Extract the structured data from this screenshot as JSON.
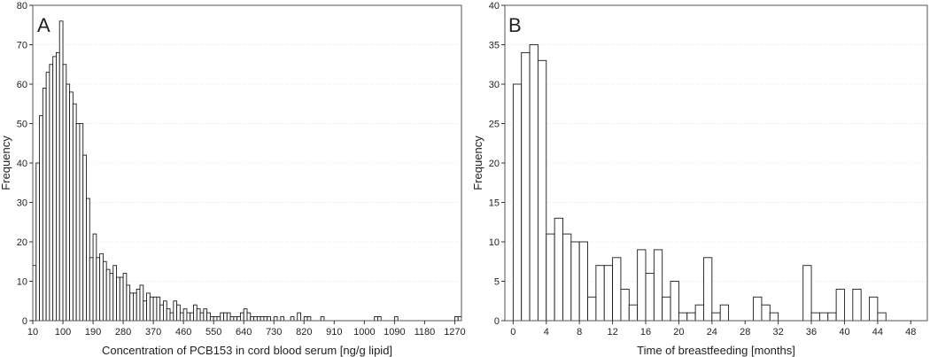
{
  "chart_data": [
    {
      "type": "bar",
      "panel_label": "A",
      "title": "",
      "xlabel": "Concentration of PCB153 in cord blood serum [ng/g lipid]",
      "ylabel": "Frequency",
      "xlim": [
        10,
        1290
      ],
      "ylim": [
        0,
        80
      ],
      "bin_width": 10,
      "xticks": [
        10,
        100,
        190,
        280,
        370,
        460,
        550,
        640,
        730,
        820,
        910,
        1000,
        1090,
        1180,
        1270
      ],
      "xtick_labels": [
        "10",
        "100",
        "190",
        "280",
        "370",
        "460",
        "550",
        "640",
        "730",
        "820",
        "910",
        "1000",
        "1090",
        "1180",
        "1270"
      ],
      "yticks": [
        0,
        10,
        20,
        30,
        40,
        50,
        60,
        70,
        80
      ],
      "ytick_labels": [
        "0",
        "10",
        "20",
        "30",
        "40",
        "50",
        "60",
        "70",
        "80"
      ],
      "grid": true,
      "bins": [
        {
          "x": 10,
          "y": 14
        },
        {
          "x": 20,
          "y": 40
        },
        {
          "x": 30,
          "y": 52
        },
        {
          "x": 40,
          "y": 59
        },
        {
          "x": 50,
          "y": 63
        },
        {
          "x": 60,
          "y": 65
        },
        {
          "x": 70,
          "y": 67
        },
        {
          "x": 80,
          "y": 68
        },
        {
          "x": 90,
          "y": 76
        },
        {
          "x": 100,
          "y": 65
        },
        {
          "x": 110,
          "y": 60
        },
        {
          "x": 120,
          "y": 58
        },
        {
          "x": 130,
          "y": 55
        },
        {
          "x": 140,
          "y": 50
        },
        {
          "x": 150,
          "y": 50
        },
        {
          "x": 160,
          "y": 42
        },
        {
          "x": 170,
          "y": 31
        },
        {
          "x": 180,
          "y": 16
        },
        {
          "x": 190,
          "y": 22
        },
        {
          "x": 200,
          "y": 16
        },
        {
          "x": 210,
          "y": 17
        },
        {
          "x": 220,
          "y": 15
        },
        {
          "x": 230,
          "y": 13
        },
        {
          "x": 240,
          "y": 12
        },
        {
          "x": 250,
          "y": 14
        },
        {
          "x": 260,
          "y": 11
        },
        {
          "x": 270,
          "y": 11
        },
        {
          "x": 280,
          "y": 12
        },
        {
          "x": 290,
          "y": 9
        },
        {
          "x": 300,
          "y": 7
        },
        {
          "x": 310,
          "y": 7
        },
        {
          "x": 320,
          "y": 8
        },
        {
          "x": 330,
          "y": 9
        },
        {
          "x": 340,
          "y": 5
        },
        {
          "x": 350,
          "y": 7
        },
        {
          "x": 360,
          "y": 6
        },
        {
          "x": 370,
          "y": 6
        },
        {
          "x": 380,
          "y": 6
        },
        {
          "x": 390,
          "y": 4
        },
        {
          "x": 400,
          "y": 5
        },
        {
          "x": 410,
          "y": 3
        },
        {
          "x": 420,
          "y": 2
        },
        {
          "x": 430,
          "y": 5
        },
        {
          "x": 440,
          "y": 4
        },
        {
          "x": 450,
          "y": 2
        },
        {
          "x": 460,
          "y": 3
        },
        {
          "x": 470,
          "y": 2
        },
        {
          "x": 480,
          "y": 2
        },
        {
          "x": 490,
          "y": 4
        },
        {
          "x": 500,
          "y": 3
        },
        {
          "x": 510,
          "y": 2
        },
        {
          "x": 520,
          "y": 3
        },
        {
          "x": 530,
          "y": 2
        },
        {
          "x": 540,
          "y": 1
        },
        {
          "x": 550,
          "y": 1
        },
        {
          "x": 560,
          "y": 1
        },
        {
          "x": 570,
          "y": 2
        },
        {
          "x": 580,
          "y": 2
        },
        {
          "x": 590,
          "y": 2
        },
        {
          "x": 600,
          "y": 1
        },
        {
          "x": 610,
          "y": 1
        },
        {
          "x": 620,
          "y": 1
        },
        {
          "x": 630,
          "y": 2
        },
        {
          "x": 640,
          "y": 3
        },
        {
          "x": 650,
          "y": 2
        },
        {
          "x": 660,
          "y": 1
        },
        {
          "x": 670,
          "y": 1
        },
        {
          "x": 680,
          "y": 1
        },
        {
          "x": 690,
          "y": 1
        },
        {
          "x": 700,
          "y": 1
        },
        {
          "x": 710,
          "y": 1
        },
        {
          "x": 730,
          "y": 1
        },
        {
          "x": 750,
          "y": 1
        },
        {
          "x": 780,
          "y": 1
        },
        {
          "x": 800,
          "y": 2
        },
        {
          "x": 820,
          "y": 1
        },
        {
          "x": 830,
          "y": 1
        },
        {
          "x": 870,
          "y": 1
        },
        {
          "x": 1030,
          "y": 1
        },
        {
          "x": 1040,
          "y": 1
        },
        {
          "x": 1090,
          "y": 1
        },
        {
          "x": 1270,
          "y": 1
        },
        {
          "x": 1280,
          "y": 1
        }
      ]
    },
    {
      "type": "bar",
      "panel_label": "B",
      "title": "",
      "xlabel": "Time of breastfeeding [months]",
      "ylabel": "Frequency",
      "xlim": [
        -1,
        50
      ],
      "ylim": [
        0,
        40
      ],
      "bin_width": 1,
      "xticks": [
        0,
        4,
        8,
        12,
        16,
        20,
        24,
        28,
        32,
        36,
        40,
        44,
        48
      ],
      "xtick_labels": [
        "0",
        "4",
        "8",
        "12",
        "16",
        "20",
        "24",
        "28",
        "32",
        "36",
        "40",
        "44",
        "48"
      ],
      "yticks": [
        0,
        5,
        10,
        15,
        20,
        25,
        30,
        35,
        40
      ],
      "ytick_labels": [
        "0",
        "5",
        "10",
        "15",
        "20",
        "25",
        "30",
        "35",
        "40"
      ],
      "grid": true,
      "bins": [
        {
          "x": 0,
          "y": 30
        },
        {
          "x": 1,
          "y": 34
        },
        {
          "x": 2,
          "y": 35
        },
        {
          "x": 3,
          "y": 33
        },
        {
          "x": 4,
          "y": 11
        },
        {
          "x": 5,
          "y": 13
        },
        {
          "x": 6,
          "y": 11
        },
        {
          "x": 7,
          "y": 10
        },
        {
          "x": 8,
          "y": 10
        },
        {
          "x": 9,
          "y": 3
        },
        {
          "x": 10,
          "y": 7
        },
        {
          "x": 11,
          "y": 7
        },
        {
          "x": 12,
          "y": 8
        },
        {
          "x": 13,
          "y": 4
        },
        {
          "x": 14,
          "y": 2
        },
        {
          "x": 15,
          "y": 9
        },
        {
          "x": 16,
          "y": 6
        },
        {
          "x": 17,
          "y": 9
        },
        {
          "x": 18,
          "y": 3
        },
        {
          "x": 19,
          "y": 5
        },
        {
          "x": 20,
          "y": 1
        },
        {
          "x": 21,
          "y": 1
        },
        {
          "x": 22,
          "y": 2
        },
        {
          "x": 23,
          "y": 8
        },
        {
          "x": 24,
          "y": 1
        },
        {
          "x": 25,
          "y": 2
        },
        {
          "x": 26,
          "y": 0
        },
        {
          "x": 27,
          "y": 0
        },
        {
          "x": 28,
          "y": 0
        },
        {
          "x": 29,
          "y": 3
        },
        {
          "x": 30,
          "y": 2
        },
        {
          "x": 31,
          "y": 1
        },
        {
          "x": 32,
          "y": 0
        },
        {
          "x": 33,
          "y": 0
        },
        {
          "x": 34,
          "y": 0
        },
        {
          "x": 35,
          "y": 7
        },
        {
          "x": 36,
          "y": 1
        },
        {
          "x": 37,
          "y": 1
        },
        {
          "x": 38,
          "y": 1
        },
        {
          "x": 39,
          "y": 4
        },
        {
          "x": 40,
          "y": 0
        },
        {
          "x": 41,
          "y": 4
        },
        {
          "x": 42,
          "y": 0
        },
        {
          "x": 43,
          "y": 3
        },
        {
          "x": 44,
          "y": 1
        },
        {
          "x": 45,
          "y": 0
        },
        {
          "x": 46,
          "y": 0
        },
        {
          "x": 47,
          "y": 0
        },
        {
          "x": 48,
          "y": 0
        }
      ]
    }
  ]
}
